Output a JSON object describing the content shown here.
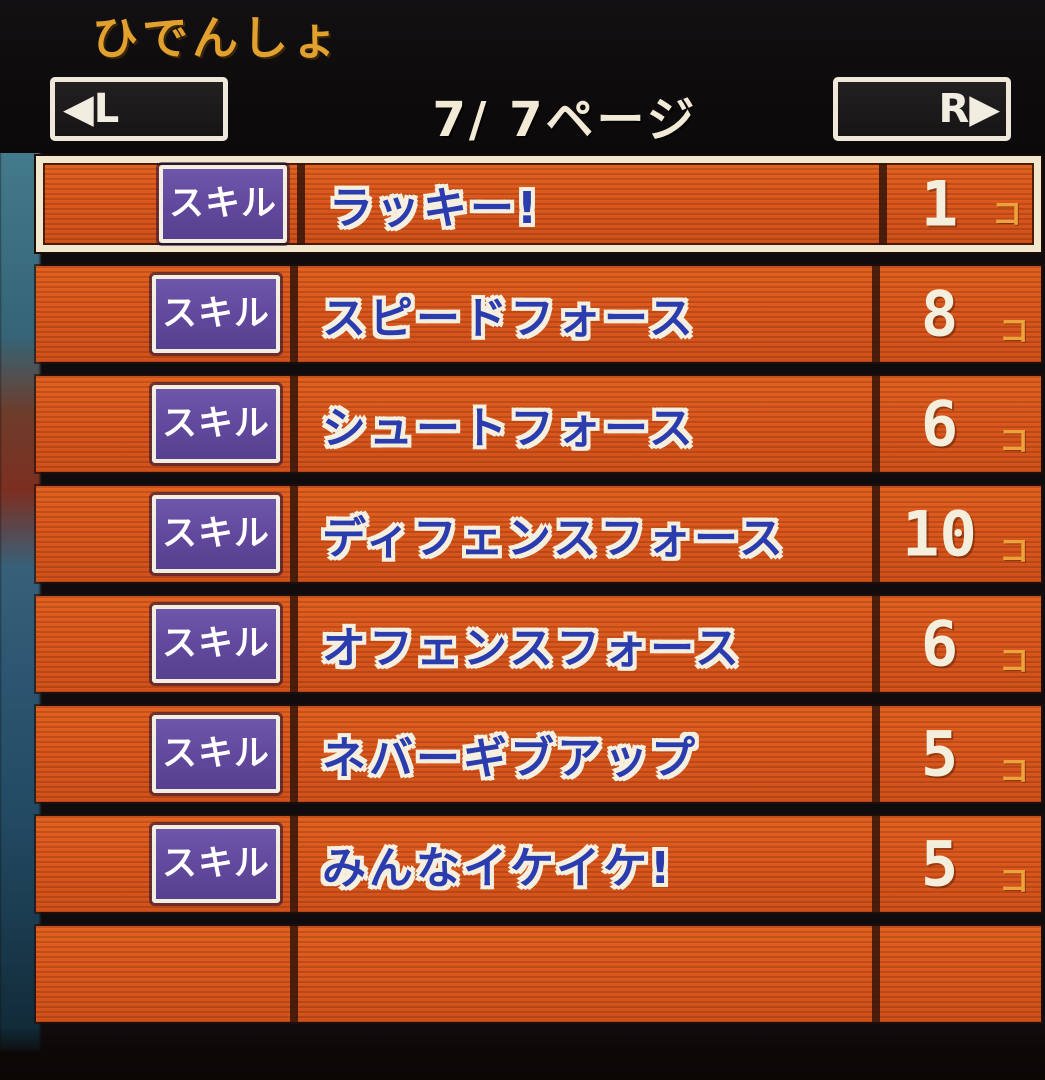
{
  "header": {
    "title": "ひでんしょ",
    "left_button_label": "◀L",
    "right_button_label": "R▶",
    "current_page": "7",
    "total_pages": "7",
    "page_indicator": "7/ 7ページ",
    "page_suffix": "ページ"
  },
  "list": {
    "badge_label": "スキル",
    "count_suffix": "コ",
    "selected_index": 0,
    "rows": [
      {
        "name": "ラッキー!",
        "count": "1"
      },
      {
        "name": "スピードフォース",
        "count": "8"
      },
      {
        "name": "シュートフォース",
        "count": "6"
      },
      {
        "name": "ディフェンスフォース",
        "count": "10"
      },
      {
        "name": "オフェンスフォース",
        "count": "6"
      },
      {
        "name": "ネバーギブアップ",
        "count": "5"
      },
      {
        "name": "みんなイケイケ!",
        "count": "5"
      }
    ]
  },
  "colors": {
    "row_orange": "#da561c",
    "highlight_cream": "#f1e8cd",
    "badge_purple": "#61489c",
    "name_blue": "#2b3cae",
    "count_white": "#f4efdc",
    "suffix_gold": "#eda33a",
    "title_gold": "#e2a12e",
    "header_black": "#0e0b0c"
  }
}
